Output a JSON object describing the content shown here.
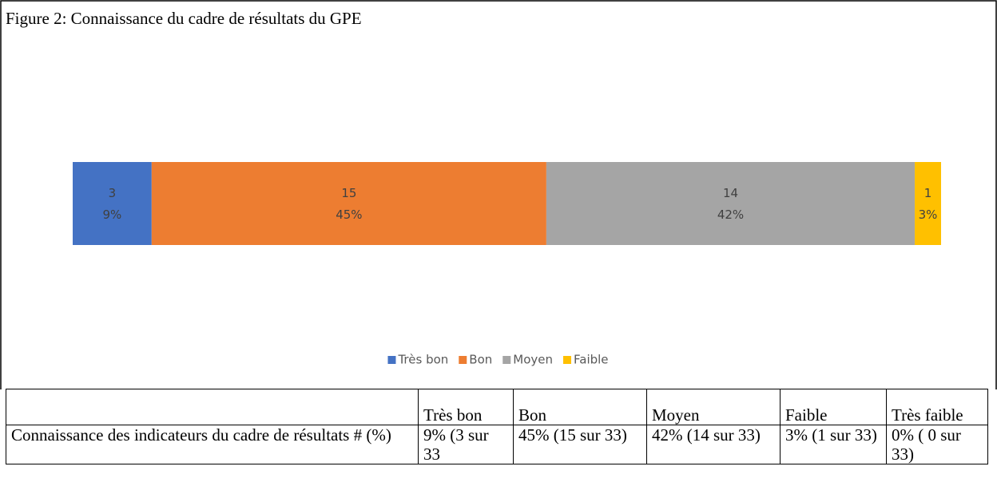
{
  "chart_data": {
    "type": "bar",
    "orientation": "horizontal",
    "stacked": true,
    "title": "Figure 2: Connaissance du cadre de résultats du GPE",
    "categories": [
      "Connaissance du cadre de résultats"
    ],
    "series": [
      {
        "name": "Très bon",
        "color": "#4472c4",
        "values": [
          3
        ],
        "percent": [
          9
        ],
        "percent_labels": [
          "9%"
        ]
      },
      {
        "name": "Bon",
        "color": "#ed7d31",
        "values": [
          15
        ],
        "percent": [
          45
        ],
        "percent_labels": [
          "45%"
        ]
      },
      {
        "name": "Moyen",
        "color": "#a5a5a5",
        "values": [
          14
        ],
        "percent": [
          42
        ],
        "percent_labels": [
          "42%"
        ]
      },
      {
        "name": "Faible",
        "color": "#ffc000",
        "values": [
          1
        ],
        "percent": [
          3
        ],
        "percent_labels": [
          "3%"
        ]
      }
    ],
    "legend": "bottom"
  },
  "table": {
    "header": [
      "Très bon",
      "Bon",
      "Moyen",
      "Faible",
      "Très faible"
    ],
    "rows": [
      [
        "Connaissance des indicateurs du cadre de résultats # (%)",
        "9% (3 sur 33",
        "45% (15 sur 33)",
        "42% (14 sur 33)",
        "3% (1 sur 33)",
        "0% ( 0 sur 33)"
      ]
    ]
  }
}
